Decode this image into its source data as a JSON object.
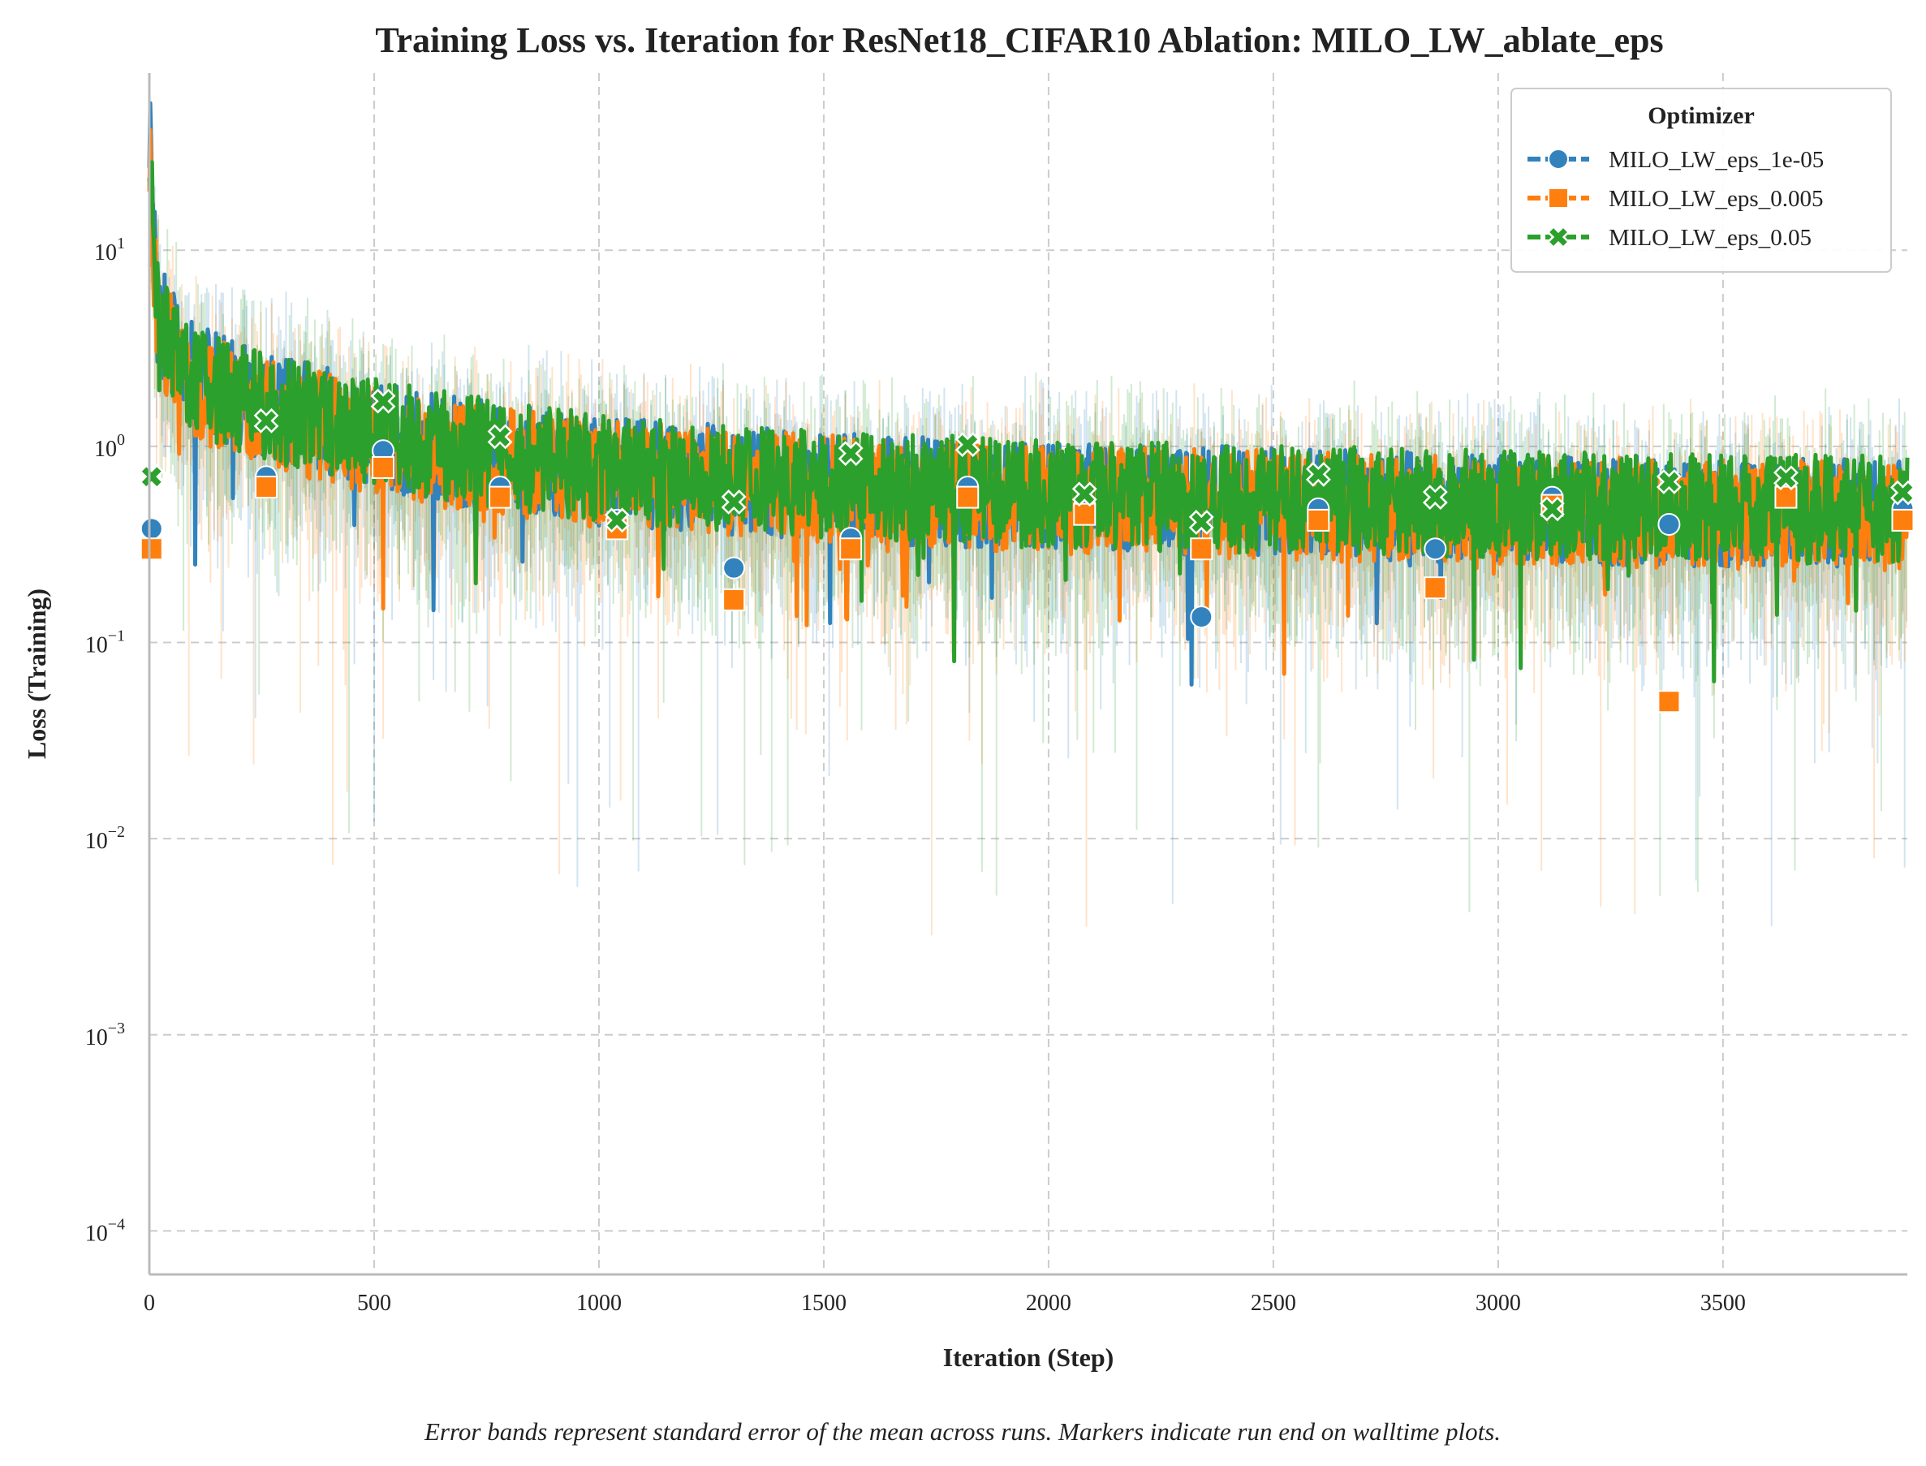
{
  "chart_data": {
    "type": "line",
    "title": "Training Loss vs. Iteration for ResNet18_CIFAR10 Ablation: MILO_LW_ablate_eps",
    "xlabel": "Iteration (Step)",
    "ylabel": "Loss (Training)",
    "xlim": [
      0,
      3910
    ],
    "ylim": [
      6e-05,
      80
    ],
    "yscale": "log",
    "x_ticks": [
      0,
      500,
      1000,
      1500,
      2000,
      2500,
      3000,
      3500
    ],
    "x_tick_labels": [
      "0",
      "500",
      "1000",
      "1500",
      "2000",
      "2500",
      "3000",
      "3500"
    ],
    "y_ticks": [
      0.0001,
      0.001,
      0.01,
      0.1,
      1,
      10
    ],
    "y_tick_labels": [
      {
        "base": "10",
        "exp": "−4"
      },
      {
        "base": "10",
        "exp": "−3"
      },
      {
        "base": "10",
        "exp": "−2"
      },
      {
        "base": "10",
        "exp": "−1"
      },
      {
        "base": "10",
        "exp": "0"
      },
      {
        "base": "10",
        "exp": "1"
      }
    ],
    "grid": true,
    "legend": {
      "title": "Optimizer",
      "placement": "top-right"
    },
    "caption": "Error bands represent standard error of the mean across runs. Markers indicate run end on walltime plots.",
    "series": [
      {
        "name": "MILO_LW_eps_1e-05",
        "color": "#3182bd",
        "marker": "circle",
        "seed": 11,
        "trend": [
          [
            0,
            40
          ],
          [
            20,
            4.5
          ],
          [
            100,
            2.2
          ],
          [
            300,
            1.5
          ],
          [
            600,
            1.0
          ],
          [
            1000,
            0.75
          ],
          [
            1500,
            0.62
          ],
          [
            2000,
            0.55
          ],
          [
            2500,
            0.52
          ],
          [
            3000,
            0.48
          ],
          [
            3500,
            0.46
          ],
          [
            3910,
            0.45
          ]
        ],
        "markers": [
          [
            5,
            0.38
          ],
          [
            260,
            0.7
          ],
          [
            520,
            0.95
          ],
          [
            780,
            0.62
          ],
          [
            1040,
            0.42
          ],
          [
            1300,
            0.24
          ],
          [
            1560,
            0.34
          ],
          [
            1820,
            0.62
          ],
          [
            2080,
            0.5
          ],
          [
            2340,
            0.135
          ],
          [
            2600,
            0.48
          ],
          [
            2860,
            0.3
          ],
          [
            3120,
            0.55
          ],
          [
            3380,
            0.4
          ],
          [
            3640,
            0.6
          ],
          [
            3900,
            0.48
          ]
        ]
      },
      {
        "name": "MILO_LW_eps_0.005",
        "color": "#ff7f0e",
        "marker": "square",
        "seed": 23,
        "trend": [
          [
            0,
            30
          ],
          [
            20,
            4.0
          ],
          [
            100,
            2.0
          ],
          [
            300,
            1.4
          ],
          [
            600,
            0.95
          ],
          [
            1000,
            0.72
          ],
          [
            1500,
            0.6
          ],
          [
            2000,
            0.53
          ],
          [
            2500,
            0.5
          ],
          [
            3000,
            0.47
          ],
          [
            3500,
            0.45
          ],
          [
            3910,
            0.44
          ]
        ],
        "markers": [
          [
            5,
            0.3
          ],
          [
            260,
            0.62
          ],
          [
            520,
            0.78
          ],
          [
            780,
            0.55
          ],
          [
            1040,
            0.38
          ],
          [
            1300,
            0.165
          ],
          [
            1560,
            0.3
          ],
          [
            1820,
            0.55
          ],
          [
            2080,
            0.45
          ],
          [
            2340,
            0.3
          ],
          [
            2600,
            0.42
          ],
          [
            2860,
            0.19
          ],
          [
            3120,
            0.5
          ],
          [
            3380,
            0.05
          ],
          [
            3640,
            0.55
          ],
          [
            3900,
            0.42
          ]
        ]
      },
      {
        "name": "MILO_LW_eps_0.05",
        "color": "#2ca02c",
        "marker": "x",
        "seed": 37,
        "trend": [
          [
            0,
            35
          ],
          [
            20,
            4.2
          ],
          [
            100,
            2.1
          ],
          [
            300,
            1.5
          ],
          [
            600,
            1.05
          ],
          [
            1000,
            0.78
          ],
          [
            1500,
            0.64
          ],
          [
            2000,
            0.57
          ],
          [
            2500,
            0.54
          ],
          [
            3000,
            0.5
          ],
          [
            3500,
            0.48
          ],
          [
            3910,
            0.47
          ]
        ],
        "markers": [
          [
            5,
            0.7
          ],
          [
            260,
            1.35
          ],
          [
            520,
            1.7
          ],
          [
            780,
            1.12
          ],
          [
            1040,
            0.42
          ],
          [
            1300,
            0.52
          ],
          [
            1560,
            0.92
          ],
          [
            1820,
            1.02
          ],
          [
            2080,
            0.57
          ],
          [
            2340,
            0.41
          ],
          [
            2600,
            0.72
          ],
          [
            2860,
            0.55
          ],
          [
            3120,
            0.48
          ],
          [
            3380,
            0.66
          ],
          [
            3640,
            0.69
          ],
          [
            3900,
            0.58
          ]
        ]
      }
    ]
  }
}
